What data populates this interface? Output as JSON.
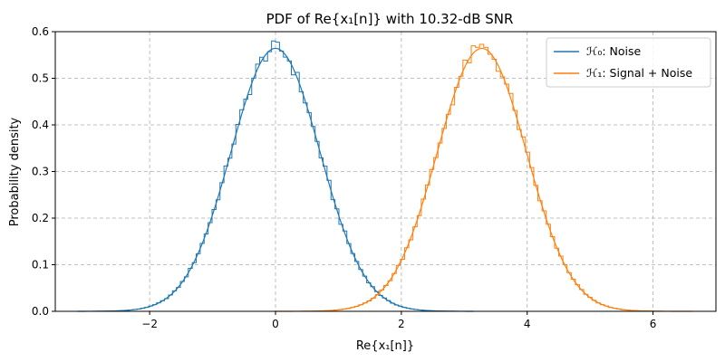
{
  "chart_data": {
    "type": "line",
    "title": "PDF of Re{x₁[n]} with 10.32-dB SNR",
    "xlabel": "Re{x₁[n]}",
    "ylabel": "Probability density",
    "xlim": [
      -3.5,
      7.0
    ],
    "ylim": [
      0.0,
      0.6
    ],
    "xticks": [
      -2,
      0,
      2,
      4,
      6
    ],
    "xtick_labels": [
      "−2",
      "0",
      "2",
      "4",
      "6"
    ],
    "yticks": [
      0.0,
      0.1,
      0.2,
      0.3,
      0.4,
      0.5,
      0.6
    ],
    "ytick_labels": [
      "0.0",
      "0.1",
      "0.2",
      "0.3",
      "0.4",
      "0.5",
      "0.6"
    ],
    "grid": true,
    "legend_position": "top-right",
    "series": [
      {
        "name": "ℋ₀: Noise",
        "color": "#1f77b4",
        "mean": 0.0,
        "std": 0.7071,
        "x_range": [
          -3.15,
          3.15
        ],
        "histogram_step": true
      },
      {
        "name": "ℋ₁: Signal + Noise",
        "color": "#ff7f0e",
        "mean": 3.28,
        "std": 0.7071,
        "x_range": [
          0.0,
          6.62
        ],
        "histogram_step": true
      }
    ]
  }
}
